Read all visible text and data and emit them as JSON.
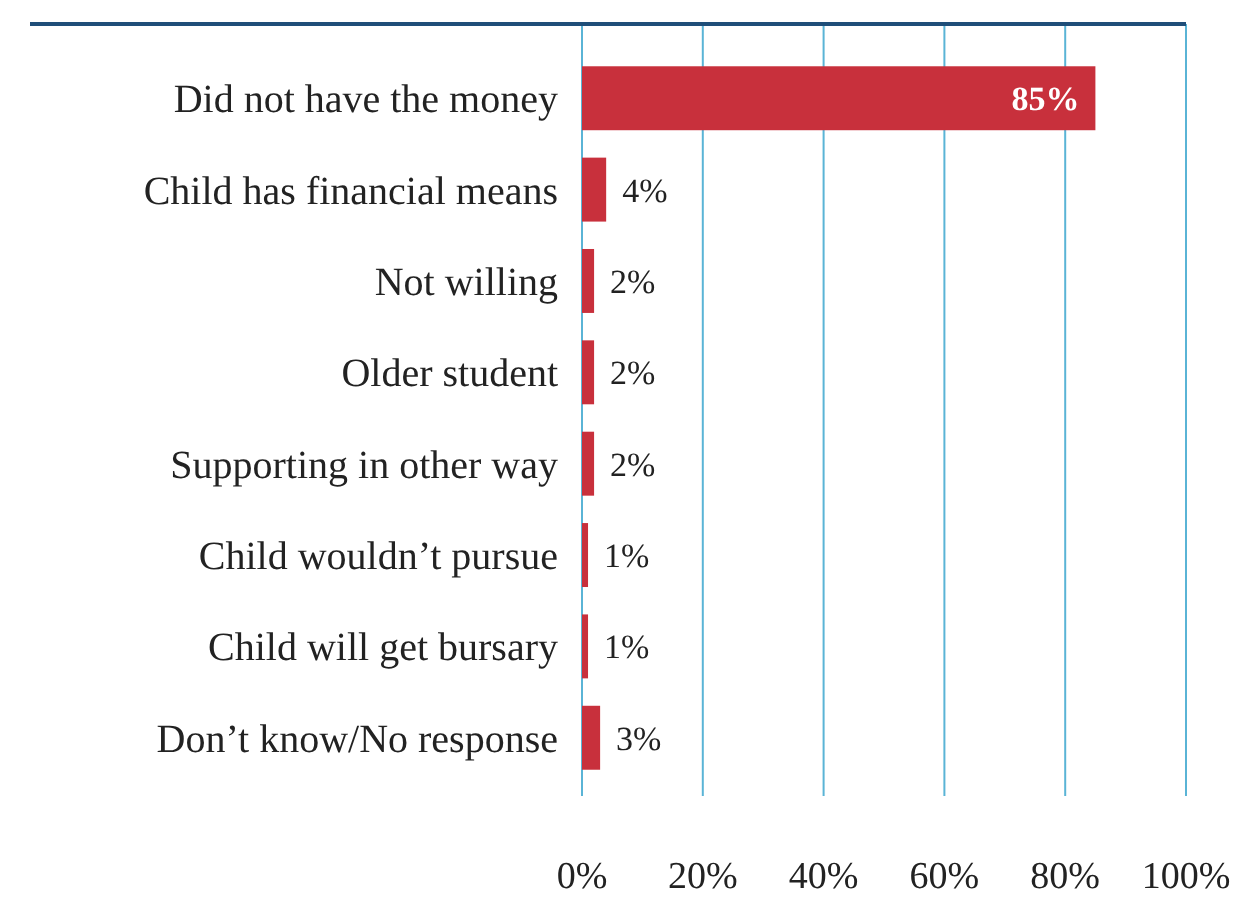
{
  "chart_data": {
    "type": "bar",
    "orientation": "horizontal",
    "categories": [
      "Did not have the money",
      "Child has financial means",
      "Not willing",
      "Older student",
      "Supporting in other way",
      "Child wouldn’t pursue",
      "Child will get bursary",
      "Don’t know/No response"
    ],
    "values": [
      85,
      4,
      2,
      2,
      2,
      1,
      1,
      3
    ],
    "color": "#c8303c",
    "xlim": [
      0,
      100
    ],
    "xticks": [
      {
        "value": 0,
        "label": "0%"
      },
      {
        "value": 20,
        "label": "20%"
      },
      {
        "value": 40,
        "label": "40%"
      },
      {
        "value": 60,
        "label": "60%"
      },
      {
        "value": 80,
        "label": "80%"
      },
      {
        "value": 100,
        "label": "100%"
      }
    ],
    "grid": "x",
    "value_labels": [
      "85%",
      "4%",
      "2%",
      "2%",
      "2%",
      "1%",
      "1%",
      "3%"
    ]
  }
}
